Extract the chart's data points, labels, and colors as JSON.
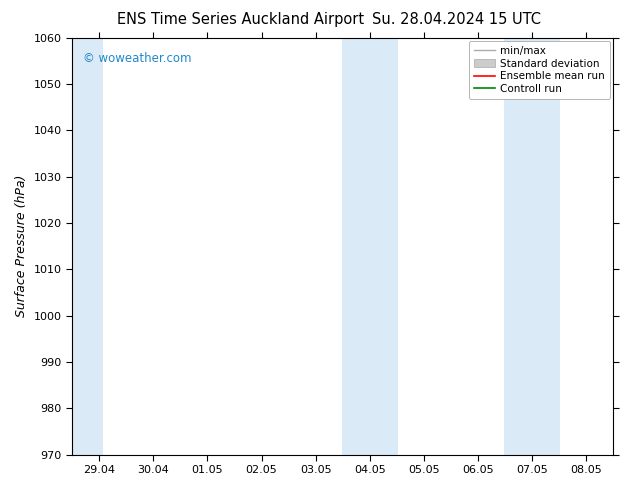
{
  "title_left": "ENS Time Series Auckland Airport",
  "title_right": "Su. 28.04.2024 15 UTC",
  "ylabel": "Surface Pressure (hPa)",
  "ylim": [
    970,
    1060
  ],
  "yticks": [
    970,
    980,
    990,
    1000,
    1010,
    1020,
    1030,
    1040,
    1050,
    1060
  ],
  "x_labels": [
    "29.04",
    "30.04",
    "01.05",
    "02.05",
    "03.05",
    "04.05",
    "05.05",
    "06.05",
    "07.05",
    "08.05"
  ],
  "x_positions": [
    0,
    1,
    2,
    3,
    4,
    5,
    6,
    7,
    8,
    9
  ],
  "xlim": [
    -0.5,
    9.5
  ],
  "shaded_bands": [
    {
      "xmin": -0.5,
      "xmax": 0.08,
      "color": "#daeaf6"
    },
    {
      "xmin": 4.48,
      "xmax": 5.52,
      "color": "#daeaf6"
    },
    {
      "xmin": 7.48,
      "xmax": 8.52,
      "color": "#daeaf6"
    }
  ],
  "watermark": "© woweather.com",
  "watermark_color": "#2288cc",
  "background_color": "#ffffff",
  "plot_bg_color": "#ffffff",
  "title_fontsize": 10.5,
  "tick_fontsize": 8,
  "ylabel_fontsize": 9,
  "legend_fontsize": 7.5,
  "min_max_color": "#aaaaaa",
  "std_dev_color": "#cccccc",
  "ens_mean_color": "#ff0000",
  "ctrl_run_color": "#008800"
}
